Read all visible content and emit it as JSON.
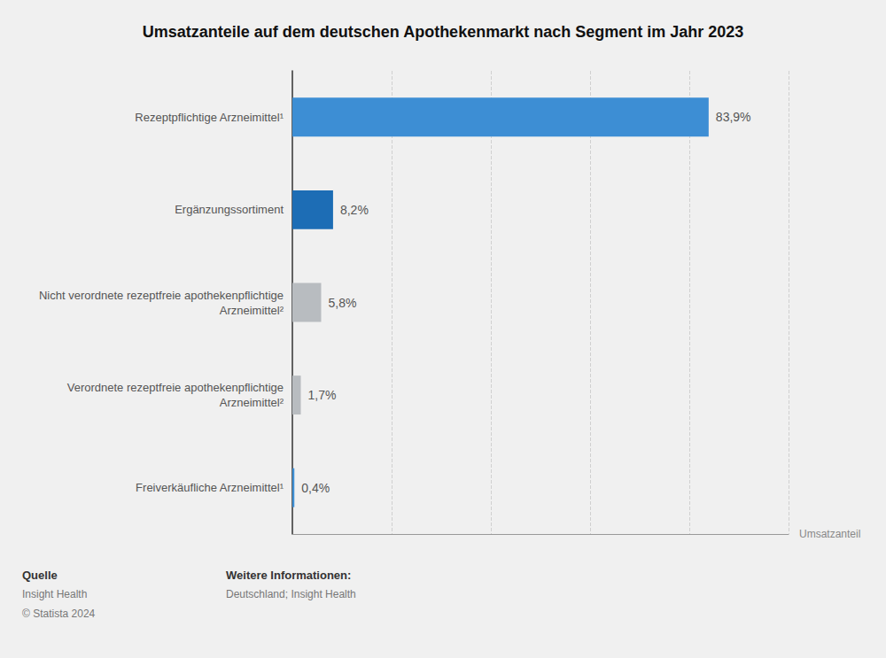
{
  "chart_data": {
    "type": "bar",
    "orientation": "horizontal",
    "title": "Umsatzanteile auf dem deutschen Apothekenmarkt nach Segment im Jahr 2023",
    "categories": [
      "Rezeptpflichtige Arzneimittel¹",
      "Ergänzungssortiment",
      "Nicht verordnete rezeptfreie apothekenpflichtige\nArzneimittel²",
      "Verordnete rezeptfreie apothekenpflichtige\nArzneimittel²",
      "Freiverkäufliche Arzneimittel¹"
    ],
    "values": [
      83.9,
      8.2,
      5.8,
      1.7,
      0.4
    ],
    "value_labels": [
      "83,9%",
      "8,2%",
      "5,8%",
      "1,7%",
      "0,4%"
    ],
    "colors": [
      "#3d8ed4",
      "#1d6db5",
      "#b8bcc0",
      "#b8bcc0",
      "#3d8ed4"
    ],
    "xlabel": "Umsatzanteil",
    "xlim": [
      0,
      100
    ],
    "xticks": [
      20,
      40,
      60,
      80,
      100
    ],
    "grid": true,
    "data_labels": true,
    "tick_labels": "y",
    "annotations": [
      [
        "Quelle",
        "Insight Health",
        "© Statista 2024"
      ],
      [
        "Weitere Informationen:",
        "Deutschland; Insight Health"
      ]
    ]
  }
}
